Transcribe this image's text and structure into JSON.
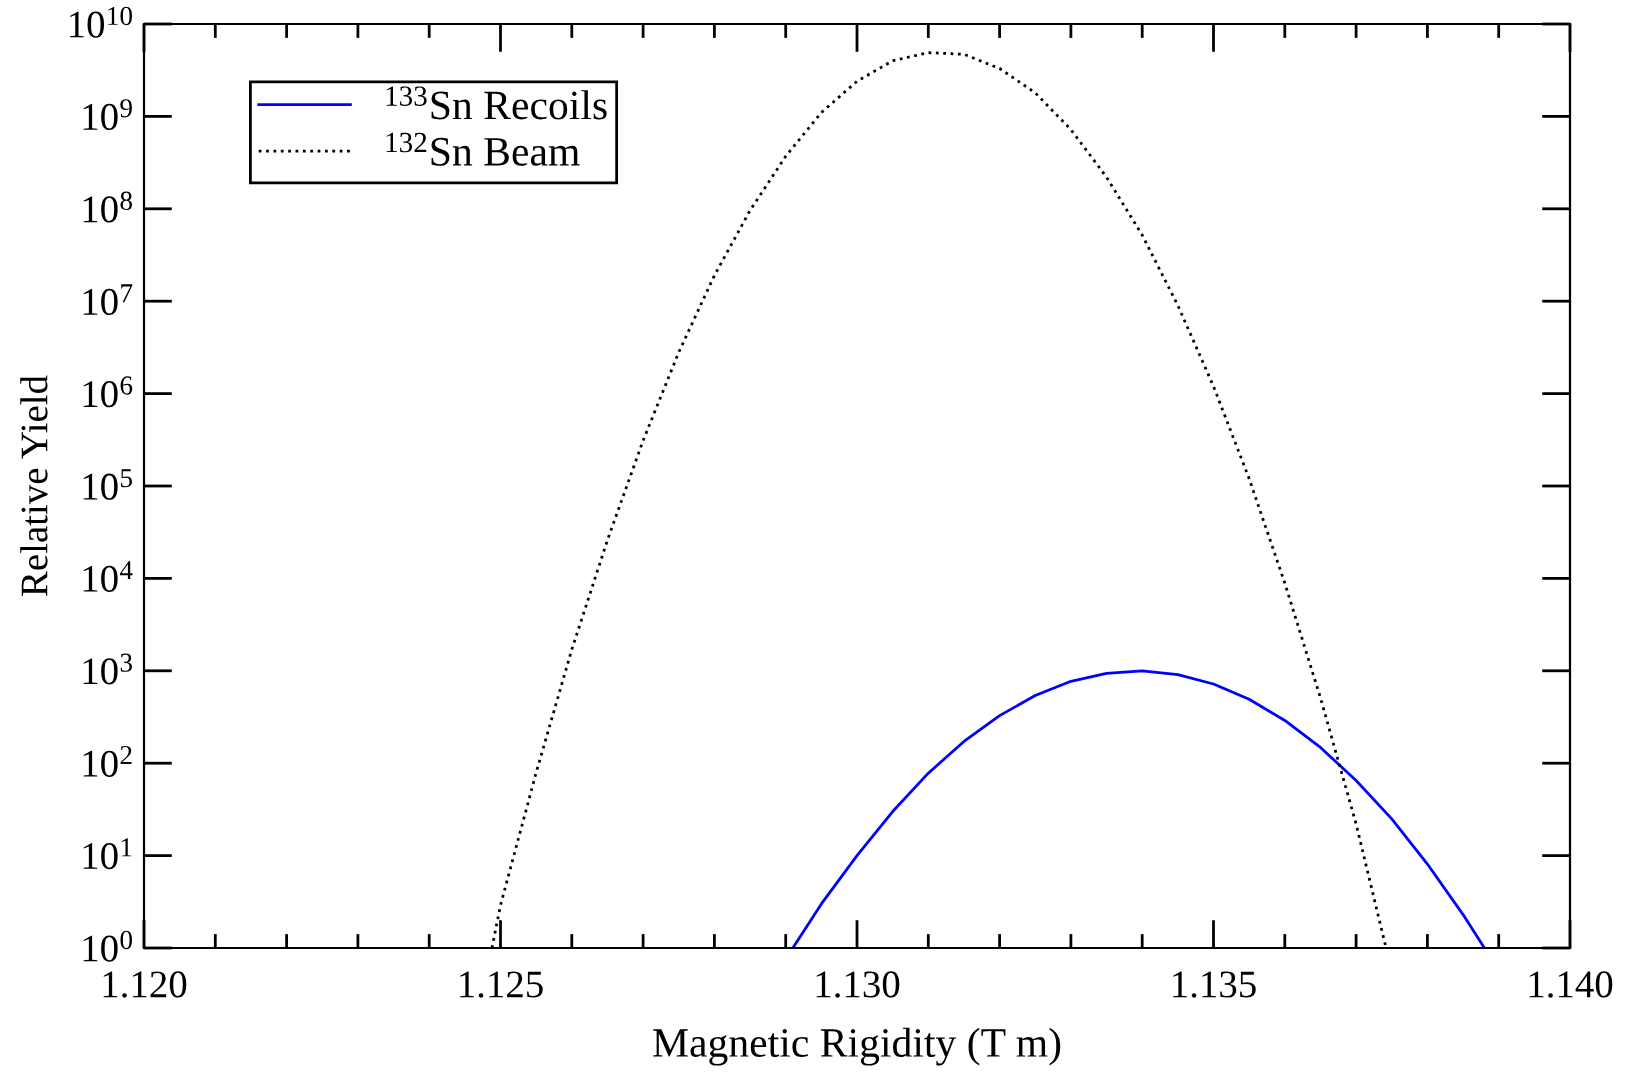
{
  "chart_data": {
    "type": "line",
    "xlabel": "Magnetic Rigidity (T m)",
    "ylabel": "Relative Yield",
    "log": "y",
    "grid": false,
    "legend": "top left",
    "xlim": [
      1.12,
      1.14
    ],
    "xticks": [
      {
        "value": 1.12,
        "label": "1.120"
      },
      {
        "value": 1.125,
        "label": "1.125"
      },
      {
        "value": 1.13,
        "label": "1.130"
      },
      {
        "value": 1.135,
        "label": "1.135"
      },
      {
        "value": 1.14,
        "label": "1.140"
      }
    ],
    "ylim": [
      1,
      10000000000
    ],
    "yticks": [
      {
        "value": 1,
        "label": "10$^{0}$"
      },
      {
        "value": 10,
        "label": "10$^{1}$"
      },
      {
        "value": 100,
        "label": "10$^{2}$"
      },
      {
        "value": 1000,
        "label": "10$^{3}$"
      },
      {
        "value": 10000,
        "label": "10$^{4}$"
      },
      {
        "value": 100000,
        "label": "10$^{5}$"
      },
      {
        "value": 1000000,
        "label": "10$^{6}$"
      },
      {
        "value": 10000000,
        "label": "10$^{7}$"
      },
      {
        "value": 100000000,
        "label": "10$^{8}$"
      },
      {
        "value": 1000000000,
        "label": "10$^{9}$"
      },
      {
        "value": 10000000000,
        "label": "10$^{10}$"
      }
    ],
    "series": [
      {
        "name": "$^{133}$Sn Recoils",
        "color": "#0000ff",
        "line_style": "solid",
        "x": [
          1.1291,
          1.1295,
          1.13,
          1.1305,
          1.131,
          1.1315,
          1.132,
          1.1325,
          1.133,
          1.1335,
          1.134,
          1.1345,
          1.135,
          1.1355,
          1.136,
          1.1365,
          1.137,
          1.1375,
          1.138,
          1.1385,
          1.1388
        ],
        "values": [
          1,
          3,
          10,
          30,
          78,
          172,
          327,
          540,
          770,
          940,
          1000,
          910,
          720,
          492,
          290,
          148,
          65,
          25,
          8.1,
          2.3,
          1
        ]
      },
      {
        "name": "$^{132}$Sn Beam",
        "color": "#000000",
        "line_style": "dotted",
        "x": [
          1.12488,
          1.125,
          1.1255,
          1.126,
          1.1265,
          1.127,
          1.1275,
          1.128,
          1.1285,
          1.129,
          1.1295,
          1.13,
          1.1305,
          1.131,
          1.1315,
          1.132,
          1.1325,
          1.133,
          1.1335,
          1.134,
          1.1345,
          1.135,
          1.1355,
          1.136,
          1.1365,
          1.137,
          1.13742
        ],
        "values": [
          1,
          2.9,
          79,
          1700,
          26000,
          310000,
          2800000,
          19000000,
          96000000,
          370000000,
          1100000000,
          2400000000,
          4000000000,
          4900000000,
          4700000000,
          3300000000,
          1800000000,
          720000000,
          220000000,
          52000000,
          9000000,
          1200000,
          120000,
          8900,
          510,
          22,
          1
        ]
      }
    ]
  }
}
